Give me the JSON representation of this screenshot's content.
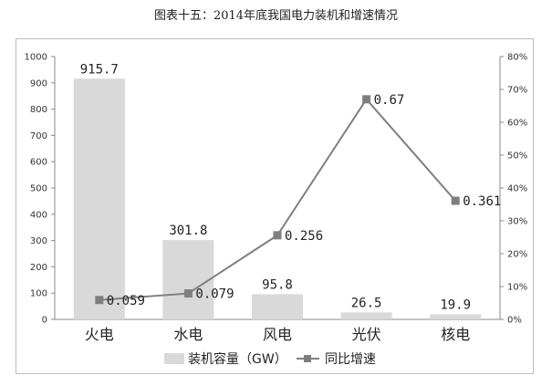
{
  "page_title": "图表十五：2014年底我国电力装机和增速情况",
  "chart_data": {
    "type": "bar",
    "title": "图表十五：2014年底我国电力装机和增速情况",
    "categories": [
      "火电",
      "水电",
      "风电",
      "光伏",
      "核电"
    ],
    "series": [
      {
        "name": "装机容量（GW）",
        "type": "bar",
        "axis": "left",
        "values": [
          915.7,
          301.8,
          95.8,
          26.5,
          19.9
        ],
        "labels": [
          "915.7",
          "301.8",
          "95.8",
          "26.5",
          "19.9"
        ],
        "color": "#d9d9d9"
      },
      {
        "name": "同比增速",
        "type": "line",
        "axis": "right",
        "values": [
          0.059,
          0.079,
          0.256,
          0.67,
          0.361
        ],
        "labels": [
          "0.059",
          "0.079",
          "0.256",
          "0.67",
          "0.361"
        ],
        "color": "#7f7f7f"
      }
    ],
    "y_left": {
      "ylim": [
        0,
        1000
      ],
      "ticks": [
        0,
        100,
        200,
        300,
        400,
        500,
        600,
        700,
        800,
        900,
        1000
      ],
      "tick_labels": [
        "0",
        "100",
        "200",
        "300",
        "400",
        "500",
        "600",
        "700",
        "800",
        "900",
        "1000"
      ]
    },
    "y_right": {
      "ylim": [
        0,
        0.8
      ],
      "ticks": [
        0,
        0.1,
        0.2,
        0.3,
        0.4,
        0.5,
        0.6,
        0.7,
        0.8
      ],
      "tick_labels": [
        "0%",
        "10%",
        "20%",
        "30%",
        "40%",
        "50%",
        "60%",
        "70%",
        "80%"
      ]
    },
    "legend_position": "bottom",
    "grid": false
  }
}
